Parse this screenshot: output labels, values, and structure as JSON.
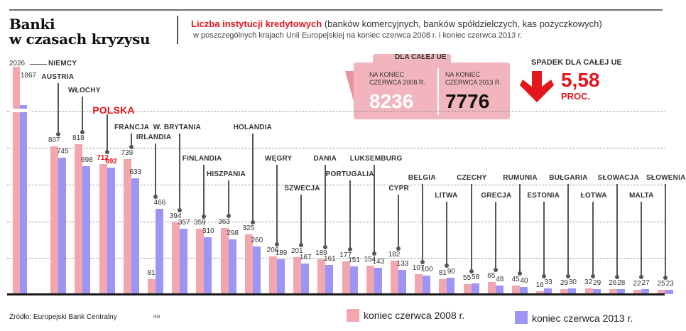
{
  "header": {
    "title_line1": "Banki",
    "title_line2": "w czasach kryzysu",
    "subtitle_red": "Liczba instytucji kredytowych",
    "subtitle_rest": " (banków komercyjnych, banków spółdzielczych, kas pożyczkowych)",
    "subtitle_line2": "w poszczególnych krajach Unii Europejskiej na koniec czerwca 2008 r. i koniec czerwca 2013 r."
  },
  "summary_box": {
    "tab_label": "DLA CAŁEJ UE",
    "col1_header_line1": "NA KONIEC",
    "col1_header_line2": "CZERWCA 2008 R.",
    "col1_value": "8236",
    "col2_header_line1": "NA KONIEC",
    "col2_header_line2": "CZERWCA 2013 R.",
    "col2_value": "7776"
  },
  "decline": {
    "label": "SPADEK DLA CAŁEJ UE",
    "value": "5,58",
    "unit": "PROC.",
    "icon": "down-arrow-icon"
  },
  "footer": {
    "source": "Źródło: Europejski Bank Centralny",
    "credit": "RM"
  },
  "legend": {
    "series_a": "koniec czerwca 2008 r.",
    "series_b": "koniec czerwca 2013 r."
  },
  "colors": {
    "series_a": "#f2a7ae",
    "series_b": "#9c95f5",
    "accent_red": "#e3161c"
  },
  "chart_data": {
    "type": "bar",
    "title": "Liczba instytucji kredytowych w poszczególnych krajach Unii Europejskiej na koniec czerwca 2008 r. i koniec czerwca 2013 r.",
    "xlabel": "",
    "ylabel": "",
    "ylim": [
      0,
      1000
    ],
    "axis_break": true,
    "grid": true,
    "gridlines": [
      200,
      400,
      600,
      800,
      1000
    ],
    "legend_position": "bottom",
    "categories": [
      "NIEMCY",
      "AUSTRIA",
      "WŁOCHY",
      "POLSKA",
      "FRANCJA",
      "IRLANDIA",
      "W. BRYTANIA",
      "FINLANDIA",
      "HISZPANIA",
      "HOLANDIA",
      "WĘGRY",
      "SZWECJA",
      "DANIA",
      "PORTUGALIA",
      "LUKSEMBURG",
      "CYPR",
      "BELGIA",
      "LITWA",
      "CZECHY",
      "GRECJA",
      "RUMUNIA",
      "ESTONIA",
      "BUŁGARIA",
      "ŁOTWA",
      "SŁOWACJA",
      "MALTA",
      "SŁOWENIA"
    ],
    "series": [
      {
        "name": "koniec czerwca 2008 r.",
        "values": [
          2026,
          807,
          818,
          712,
          739,
          81,
          394,
          359,
          363,
          325,
          206,
          201,
          189,
          177,
          154,
          182,
          107,
          81,
          55,
          65,
          45,
          16,
          29,
          32,
          26,
          22,
          25
        ]
      },
      {
        "name": "koniec czerwca 2013 r.",
        "values": [
          1867,
          745,
          698,
          692,
          633,
          466,
          357,
          310,
          298,
          260,
          189,
          167,
          161,
          151,
          143,
          133,
          100,
          90,
          58,
          48,
          40,
          33,
          30,
          29,
          28,
          27,
          23
        ]
      }
    ],
    "highlight": "POLSKA"
  }
}
